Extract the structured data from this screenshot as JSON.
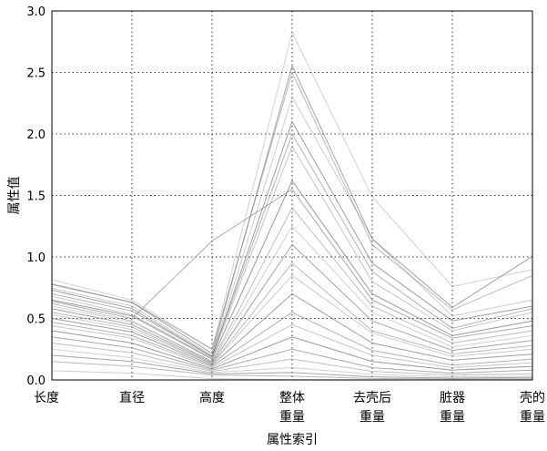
{
  "chart_data": {
    "type": "parallel-coordinates",
    "title": "",
    "xlabel": "属性索引",
    "ylabel": "属性值",
    "ylim": [
      0,
      3.0
    ],
    "yticks": [
      0.0,
      0.5,
      1.0,
      1.5,
      2.0,
      2.5,
      3.0
    ],
    "ytick_labels": [
      "0.0",
      "0.5",
      "1.0",
      "1.5",
      "2.0",
      "2.5",
      "3.0"
    ],
    "grid": true,
    "axes": [
      {
        "line1": "长度",
        "line2": ""
      },
      {
        "line1": "直径",
        "line2": ""
      },
      {
        "line1": "高度",
        "line2": ""
      },
      {
        "line1": "整体",
        "line2": "重量"
      },
      {
        "line1": "去壳后",
        "line2": "重量"
      },
      {
        "line1": "脏器",
        "line2": "重量"
      },
      {
        "line1": "壳的",
        "line2": "重量"
      }
    ],
    "series": [
      {
        "values": [
          0.815,
          0.65,
          0.25,
          2.826,
          1.488,
          0.76,
          0.897
        ]
      },
      {
        "values": [
          0.78,
          0.63,
          0.215,
          2.555,
          1.146,
          0.59,
          1.005
        ]
      },
      {
        "values": [
          0.775,
          0.63,
          0.25,
          2.5,
          1.1,
          0.57,
          0.85
        ]
      },
      {
        "values": [
          0.745,
          0.6,
          0.2,
          2.3,
          1.15,
          0.52,
          0.65
        ]
      },
      {
        "values": [
          0.73,
          0.58,
          0.19,
          2.1,
          0.95,
          0.48,
          0.6
        ]
      },
      {
        "values": [
          0.7,
          0.56,
          0.19,
          2.0,
          0.88,
          0.42,
          0.58
        ]
      },
      {
        "values": [
          0.68,
          0.53,
          0.18,
          1.9,
          0.8,
          0.4,
          0.55
        ]
      },
      {
        "values": [
          0.65,
          0.52,
          0.17,
          1.62,
          0.7,
          0.36,
          0.48
        ]
      },
      {
        "values": [
          0.64,
          0.5,
          1.13,
          1.55,
          0.65,
          0.34,
          0.44
        ]
      },
      {
        "values": [
          0.62,
          0.48,
          0.15,
          1.4,
          0.6,
          0.3,
          0.4
        ]
      },
      {
        "values": [
          0.6,
          0.47,
          0.15,
          1.25,
          0.55,
          0.27,
          0.36
        ]
      },
      {
        "values": [
          0.58,
          0.45,
          0.14,
          1.1,
          0.48,
          0.24,
          0.32
        ]
      },
      {
        "values": [
          0.55,
          0.43,
          0.13,
          0.95,
          0.4,
          0.21,
          0.28
        ]
      },
      {
        "values": [
          0.53,
          0.41,
          0.13,
          0.85,
          0.38,
          0.19,
          0.25
        ]
      },
      {
        "values": [
          0.5,
          0.39,
          0.12,
          0.7,
          0.3,
          0.16,
          0.21
        ]
      },
      {
        "values": [
          0.47,
          0.36,
          0.11,
          0.55,
          0.24,
          0.12,
          0.17
        ]
      },
      {
        "values": [
          0.44,
          0.34,
          0.1,
          0.45,
          0.2,
          0.1,
          0.14
        ]
      },
      {
        "values": [
          0.4,
          0.3,
          0.09,
          0.35,
          0.15,
          0.08,
          0.11
        ]
      },
      {
        "values": [
          0.35,
          0.26,
          0.08,
          0.25,
          0.1,
          0.055,
          0.08
        ]
      },
      {
        "values": [
          0.3,
          0.22,
          0.07,
          0.17,
          0.07,
          0.04,
          0.05
        ]
      },
      {
        "values": [
          0.25,
          0.18,
          0.06,
          0.1,
          0.045,
          0.025,
          0.03
        ]
      },
      {
        "values": [
          0.2,
          0.15,
          0.05,
          0.06,
          0.025,
          0.015,
          0.02
        ]
      },
      {
        "values": [
          0.15,
          0.11,
          0.04,
          0.03,
          0.012,
          0.008,
          0.01
        ]
      },
      {
        "values": [
          0.075,
          0.055,
          0.01,
          0.002,
          0.001,
          0.0005,
          0.0015
        ]
      }
    ],
    "line_color": "#7f7f7f"
  }
}
